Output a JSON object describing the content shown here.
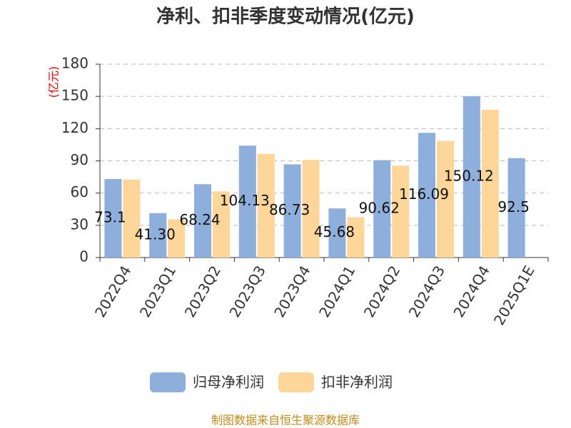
{
  "chart_data": {
    "type": "bar",
    "title": "净利、扣非季度变动情况(亿元)",
    "y_label": "(亿元)",
    "source": "制图数据来自恒生聚源数据库",
    "categories": [
      "2022Q4",
      "2023Q1",
      "2023Q2",
      "2023Q3",
      "2023Q4",
      "2024Q1",
      "2024Q2",
      "2024Q3",
      "2024Q4",
      "2025Q1E"
    ],
    "series": [
      {
        "name": "归母净利润",
        "color": "#8eaedb",
        "values": [
          73.1,
          41.3,
          68.24,
          104.13,
          86.73,
          45.68,
          90.62,
          116.09,
          150.12,
          92.5
        ],
        "value_labels": [
          "73.1",
          "41.30",
          "68.24",
          "104.13",
          "86.73",
          "45.68",
          "90.62",
          "116.09",
          "150.12",
          "92.5"
        ]
      },
      {
        "name": "扣非净利润",
        "color": "#ffd699",
        "values": [
          72.5,
          35.5,
          61.5,
          96.5,
          91,
          37.5,
          85.5,
          108.5,
          137.5,
          null
        ]
      }
    ],
    "ylim": [
      0,
      180
    ],
    "yticks": [
      0,
      30,
      60,
      90,
      120,
      150,
      180
    ],
    "grid": true
  }
}
